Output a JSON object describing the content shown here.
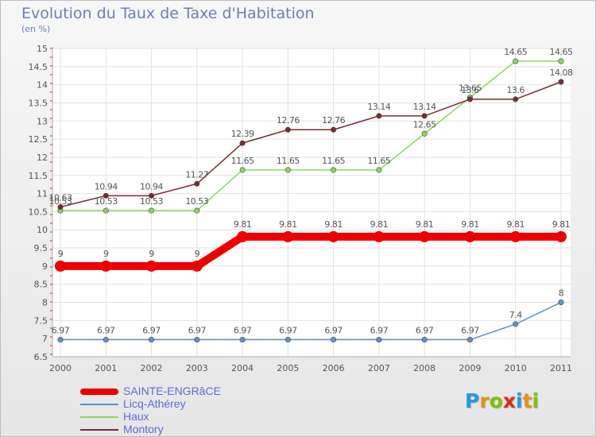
{
  "header": {
    "title": "Evolution du Taux de Taxe d'Habitation",
    "unit": "(en %)"
  },
  "brand": {
    "text": "Proxiti",
    "letter_colors": [
      "#1e9be8",
      "#f08c19",
      "#7dc400",
      "#e8241c",
      "#1e9be8",
      "#f08c19",
      "#7dc400"
    ]
  },
  "chart_data": {
    "type": "line",
    "title": "Evolution du Taux de Taxe d'Habitation",
    "ylabel": "(en %)",
    "xlabel": "",
    "x": [
      "2000",
      "2001",
      "2002",
      "2003",
      "2004",
      "2005",
      "2006",
      "2007",
      "2008",
      "2009",
      "2010",
      "2011"
    ],
    "ylim": [
      6.5,
      15
    ],
    "yticks": [
      "6.5",
      "7",
      "7.5",
      "8",
      "8.5",
      "9",
      "9.5",
      "10",
      "10.5",
      "11",
      "11.5",
      "12",
      "12.5",
      "13",
      "13.5",
      "14",
      "14.5",
      "15"
    ],
    "grid": true,
    "legend_position": "bottom-left",
    "series": [
      {
        "name": "SAINTE-ENGRâCE",
        "color": "#ee0000",
        "emphasis": true,
        "values": [
          9,
          9,
          9,
          9,
          9.81,
          9.81,
          9.81,
          9.81,
          9.81,
          9.81,
          9.81,
          9.81
        ],
        "labels": [
          "9",
          "9",
          "9",
          "9",
          "9.81",
          "9.81",
          "9.81",
          "9.81",
          "9.81",
          "9.81",
          "9.81",
          "9.81"
        ]
      },
      {
        "name": "Licq-Athérey",
        "color": "#5b93cc",
        "values": [
          6.97,
          6.97,
          6.97,
          6.97,
          6.97,
          6.97,
          6.97,
          6.97,
          6.97,
          6.97,
          7.4,
          8
        ],
        "labels": [
          "6.97",
          "6.97",
          "6.97",
          "6.97",
          "6.97",
          "6.97",
          "6.97",
          "6.97",
          "6.97",
          "6.97",
          "7.4",
          "8"
        ]
      },
      {
        "name": "Haux",
        "color": "#8ed65f",
        "values": [
          10.53,
          10.53,
          10.53,
          10.53,
          11.65,
          11.65,
          11.65,
          11.65,
          12.65,
          13.65,
          14.65,
          14.65
        ],
        "labels": [
          "10.53",
          "10.53",
          "10.53",
          "10.53",
          "11.65",
          "11.65",
          "11.65",
          "11.65",
          "12.65",
          "13.65",
          "14.65",
          "14.65"
        ]
      },
      {
        "name": "Montory",
        "color": "#7a2c32",
        "values": [
          10.63,
          10.94,
          10.94,
          11.27,
          12.39,
          12.76,
          12.76,
          13.14,
          13.14,
          13.6,
          13.6,
          14.08
        ],
        "labels": [
          "10.63",
          "10.94",
          "10.94",
          "11.27",
          "12.39",
          "12.76",
          "12.76",
          "13.14",
          "13.14",
          "13.6",
          "13.6",
          "14.08"
        ]
      }
    ]
  }
}
